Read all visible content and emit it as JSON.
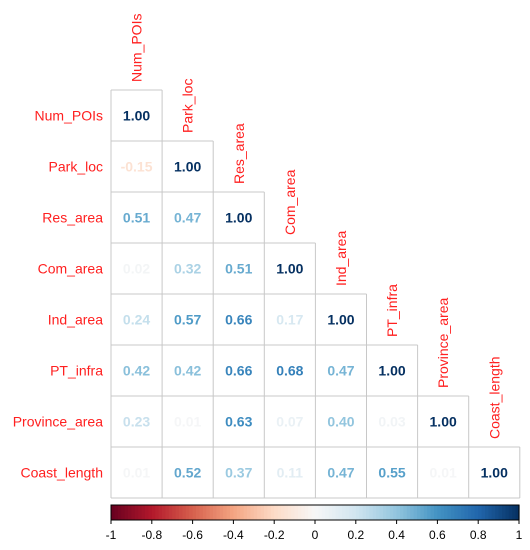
{
  "chart_data": {
    "type": "heatmap",
    "variables": [
      "Num_POIs",
      "Park_loc",
      "Res_area",
      "Com_area",
      "Ind_area",
      "PT_infra",
      "Province_area",
      "Coast_length"
    ],
    "matrix": [
      [
        1.0
      ],
      [
        -0.15,
        1.0
      ],
      [
        0.51,
        0.47,
        1.0
      ],
      [
        0.02,
        0.32,
        0.51,
        1.0
      ],
      [
        0.24,
        0.57,
        0.66,
        0.17,
        1.0
      ],
      [
        0.42,
        0.42,
        0.66,
        0.68,
        0.47,
        1.0
      ],
      [
        0.23,
        0.01,
        0.63,
        0.07,
        0.4,
        0.03,
        1.0
      ],
      [
        0.01,
        0.52,
        0.37,
        0.11,
        0.47,
        0.55,
        0.01,
        1.0
      ]
    ],
    "layout": "lower-triangle",
    "value_range": [
      -1,
      1
    ],
    "colorbar": {
      "ticks": [
        "-1",
        "-0.8",
        "-0.6",
        "-0.4",
        "-0.2",
        "0",
        "0.2",
        "0.4",
        "0.6",
        "0.8",
        "1"
      ],
      "colors": [
        "#67001f",
        "#b2182b",
        "#d6604d",
        "#f4a582",
        "#fddbc7",
        "#f7f7f7",
        "#d1e5f0",
        "#92c5de",
        "#4393c3",
        "#2166ac",
        "#053061"
      ]
    },
    "label_color": "#ff2020",
    "grid": true
  }
}
